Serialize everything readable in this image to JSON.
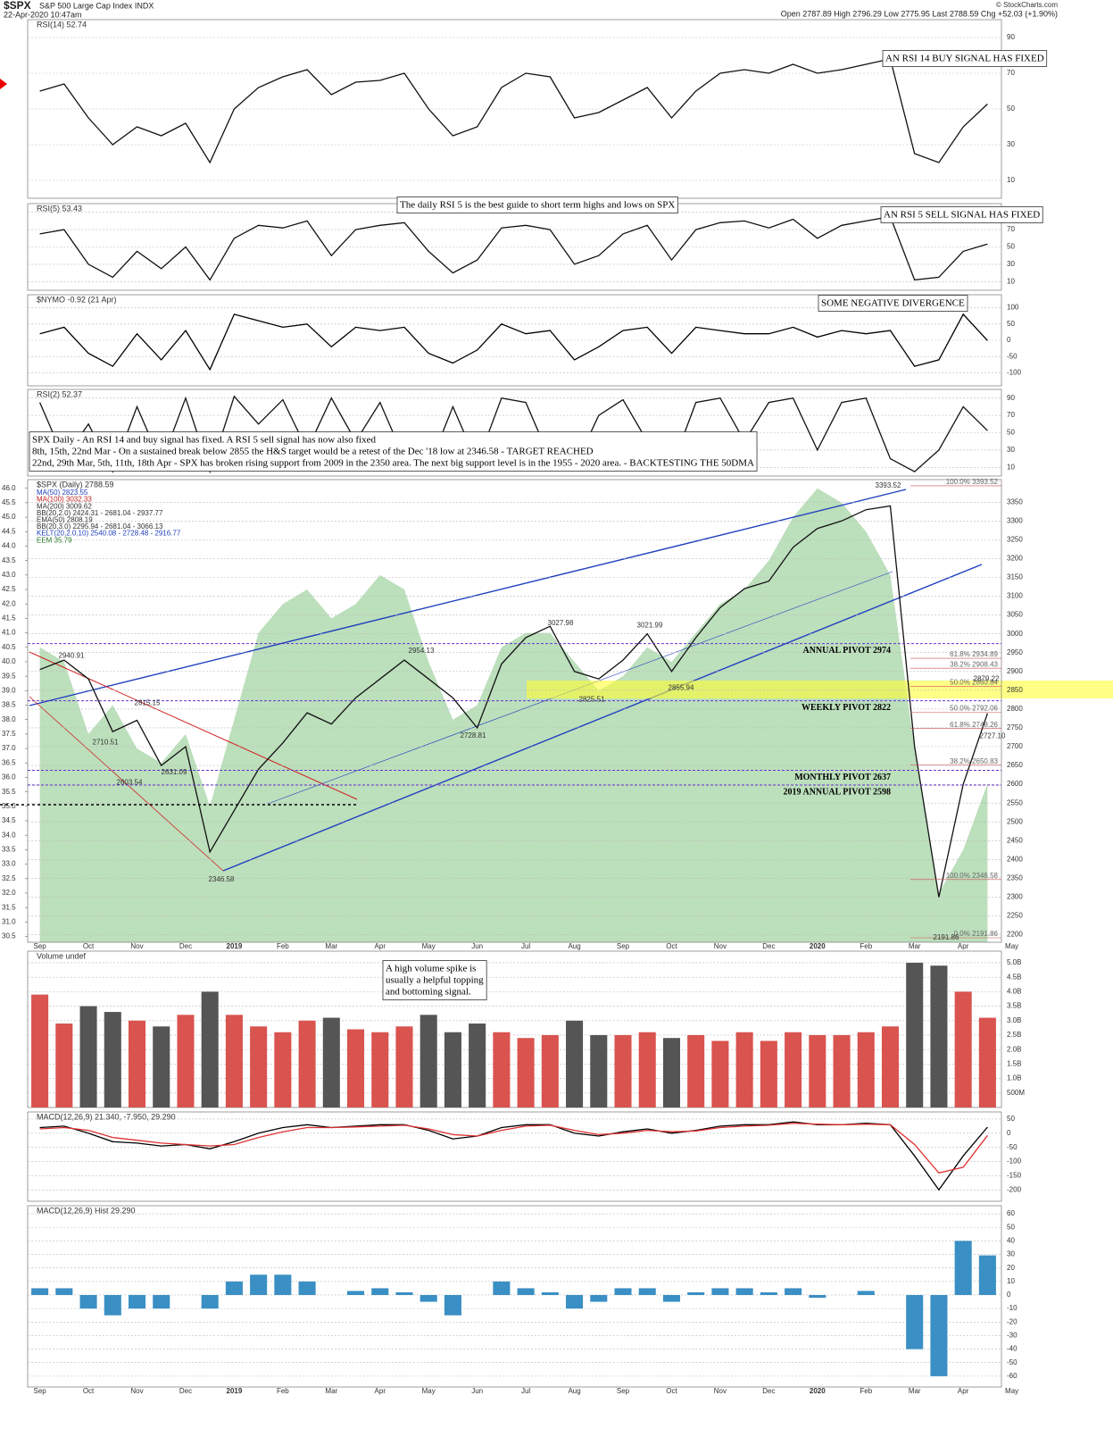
{
  "header": {
    "symbol": "$SPX",
    "name": "S&P 500 Large Cap Index INDX",
    "date": "22-Apr-2020 10:47am",
    "quote": "Open 2787.89  High 2796.29  Low 2775.95  Last 2788.59  Chg +52.03 (+1.90%)",
    "credit": "© StockCharts.com"
  },
  "chart_data": [
    {
      "type": "line",
      "title": "RSI(14) 52.74",
      "ylim": [
        0,
        100
      ],
      "yticks": [
        10,
        30,
        50,
        70,
        90
      ],
      "annotations": [
        "AN RSI 14 BUY SIGNAL HAS FIXED"
      ],
      "series": [
        {
          "name": "RSI(14)",
          "color": "#111111",
          "values": [
            60,
            64,
            45,
            30,
            40,
            35,
            42,
            20,
            50,
            62,
            68,
            72,
            58,
            65,
            66,
            70,
            50,
            35,
            40,
            62,
            70,
            68,
            45,
            48,
            55,
            62,
            45,
            60,
            70,
            72,
            70,
            75,
            70,
            72,
            75,
            78,
            25,
            20,
            40,
            52.74,
            null,
            null
          ]
        }
      ]
    },
    {
      "type": "line",
      "title": "RSI(5) 53.43",
      "ylim": [
        0,
        100
      ],
      "yticks": [
        10,
        30,
        50,
        70,
        90
      ],
      "annotations": [
        "The daily RSI 5 is the best guide to short term highs and lows on SPX",
        "AN RSI 5 SELL SIGNAL HAS FIXED"
      ],
      "series": [
        {
          "name": "RSI(5)",
          "color": "#111111",
          "values": [
            65,
            70,
            30,
            15,
            45,
            25,
            50,
            12,
            60,
            75,
            72,
            80,
            40,
            70,
            75,
            78,
            45,
            20,
            35,
            72,
            75,
            70,
            30,
            40,
            65,
            75,
            35,
            70,
            78,
            80,
            72,
            82,
            60,
            75,
            80,
            85,
            12,
            15,
            45,
            53.43,
            null,
            null
          ]
        }
      ]
    },
    {
      "type": "line",
      "title": "$NYMO -0.92 (21 Apr)",
      "ylim": [
        -140,
        140
      ],
      "yticks": [
        -100,
        -50,
        0,
        50,
        100
      ],
      "annotations": [
        "SOME NEGATIVE DIVERGENCE"
      ],
      "series": [
        {
          "name": "$NYMO",
          "color": "#000000",
          "values": [
            20,
            40,
            -40,
            -80,
            20,
            -60,
            30,
            -90,
            80,
            60,
            40,
            50,
            -20,
            40,
            30,
            40,
            -40,
            -70,
            -30,
            50,
            20,
            30,
            -60,
            -20,
            30,
            40,
            -40,
            40,
            30,
            20,
            20,
            40,
            10,
            30,
            20,
            30,
            -80,
            -60,
            80,
            -0.92,
            null,
            null
          ]
        }
      ]
    },
    {
      "type": "line",
      "title": "RSI(2) 52.37",
      "ylim": [
        0,
        100
      ],
      "yticks": [
        10,
        30,
        50,
        70,
        90
      ],
      "annotations": [
        "SPX Daily - An RSI 14 and buy signal has fixed. A RSI 5 sell signal has now also fixed",
        "8th, 15th, 22nd Mar - On a sustained break below 2855 the H&S target would be a retest of the Dec '18 low at 2346.58 - TARGET REACHED",
        "22nd, 29th Mar, 5th, 11th, 18th Apr - SPX has broken rising support from 2009 in the 2350 area. The next big support level is in the 1955 - 2020 area. - BACKTESTING THE 50DMA"
      ],
      "series": [
        {
          "name": "RSI(2)",
          "color": "#111111",
          "values": [
            85,
            20,
            60,
            5,
            80,
            15,
            90,
            5,
            92,
            60,
            88,
            30,
            90,
            40,
            85,
            20,
            10,
            80,
            15,
            90,
            85,
            20,
            10,
            70,
            88,
            40,
            10,
            85,
            90,
            40,
            85,
            90,
            30,
            85,
            90,
            20,
            5,
            30,
            80,
            52.37,
            null,
            null
          ]
        }
      ]
    },
    {
      "type": "line",
      "title": "$SPX (Daily) 2788.59",
      "categories": [
        "Sep",
        null,
        "Oct",
        null,
        "Nov",
        null,
        "Dec",
        null,
        "2019",
        null,
        "Feb",
        null,
        "Mar",
        null,
        "Apr",
        null,
        "May",
        null,
        "Jun",
        null,
        "Jul",
        null,
        "Aug",
        null,
        "Sep",
        null,
        "Oct",
        null,
        "Nov",
        null,
        "Dec",
        null,
        "2020",
        null,
        "Feb",
        null,
        "Mar",
        null,
        "Apr",
        null,
        "May",
        null
      ],
      "ylim": [
        2180,
        3410
      ],
      "yticks": [
        2200,
        2250,
        2300,
        2350,
        2400,
        2450,
        2500,
        2550,
        2600,
        2650,
        2700,
        2750,
        2800,
        2850,
        2900,
        2950,
        3000,
        3050,
        3100,
        3150,
        3200,
        3250,
        3300,
        3350
      ],
      "y2lim": [
        30.3,
        46.3
      ],
      "y2ticks": [
        30.5,
        {
          "value": 31,
          "label": "31.0"
        },
        31.5,
        {
          "value": 32,
          "label": "32.0"
        },
        32.5,
        {
          "value": 33,
          "label": "33.0"
        },
        33.5,
        {
          "value": 34,
          "label": "34.0"
        },
        34.5,
        {
          "value": 35,
          "label": "35.0"
        },
        35.5,
        {
          "value": 36,
          "label": "36.0"
        },
        36.5,
        {
          "value": 37,
          "label": "37.0"
        },
        37.5,
        {
          "value": 38,
          "label": "38.0"
        },
        38.5,
        {
          "value": 39,
          "label": "39.0"
        },
        39.5,
        {
          "value": 40,
          "label": "40.0"
        },
        40.5,
        {
          "value": 41,
          "label": "41.0"
        },
        41.5,
        {
          "value": 42,
          "label": "42.0"
        },
        42.5,
        {
          "value": 43,
          "label": "43.0"
        },
        43.5,
        {
          "value": 44,
          "label": "44.0"
        },
        44.5,
        {
          "value": 45,
          "label": "45.0"
        },
        45.5,
        {
          "value": 46,
          "label": "46.0"
        }
      ],
      "legend": [
        {
          "name": "MA(50) 2823.55",
          "color": "#1f3fbf"
        },
        {
          "name": "MA(100) 3032.33",
          "color": "#c02020"
        },
        {
          "name": "MA(200) 3009.62",
          "color": "#333333"
        },
        {
          "name": "BB(20,2.0) 2424.31 - 2681.04 - 2937.77",
          "color": "#333333"
        },
        {
          "name": "EMA(50) 2808.19",
          "color": "#333333"
        },
        {
          "name": "BB(20,3.0) 2295.94 - 2681.04 - 3066.13",
          "color": "#333333"
        },
        {
          "name": "KELT(20,2.0,10) 2540.08 - 2728.48 - 2916.77",
          "color": "#1f3fbf"
        }
      ],
      "series": [
        {
          "name": "EEM 35.79",
          "color": "#8fc98f",
          "axis": "y2",
          "values": [
            40.5,
            40,
            37.5,
            38.5,
            37,
            36.5,
            37.5,
            35,
            38,
            41,
            42,
            42.5,
            41.5,
            42,
            43,
            42.5,
            40,
            38,
            38.5,
            40.5,
            41,
            41,
            40,
            39,
            39.5,
            40.5,
            40,
            41,
            42,
            42.5,
            43.5,
            45,
            46,
            45.5,
            44.5,
            43,
            37,
            32,
            33.5,
            35.79,
            null,
            null
          ]
        },
        {
          "name": "$SPX",
          "color": "#111111",
          "values": [
            2905,
            2930,
            2880,
            2740,
            2770,
            2650,
            2700,
            2420,
            2530,
            2640,
            2710,
            2790,
            2760,
            2830,
            2880,
            2930,
            2880,
            2830,
            2750,
            2920,
            2990,
            3020,
            2900,
            2880,
            2930,
            3000,
            2900,
            2990,
            3070,
            3120,
            3140,
            3230,
            3280,
            3300,
            3330,
            3340,
            2700,
            2300,
            2600,
            2788.59,
            null,
            null
          ]
        }
      ],
      "pivots": [
        {
          "label": "ANNUAL PIVOT 2974",
          "value": 2974
        },
        {
          "label": "WEEKLY PIVOT 2822",
          "value": 2822
        },
        {
          "label": "MONTHLY PIVOT 2637",
          "value": 2637
        },
        {
          "label": "2019 ANNUAL PIVOT 2598",
          "value": 2598
        }
      ],
      "fib_labels": [
        {
          "label": "100.0% 3393.52",
          "value": 3393.52
        },
        {
          "label": "38.2% 2908.43",
          "value": 2908.43
        },
        {
          "label": "61.8% 2934.89",
          "value": 2934.89
        },
        {
          "label": "50.0% 2860.84",
          "value": 2860.84
        },
        {
          "label": "50.0% 2792.06",
          "value": 2792.06
        },
        {
          "label": "61.8% 2748.26",
          "value": 2748.26
        },
        {
          "label": "38.2% 2650.83",
          "value": 2650.83
        },
        {
          "label": "100.0% 2346.58",
          "value": 2346.58
        },
        {
          "label": "0.0% 2191.86",
          "value": 2191.86
        }
      ],
      "point_labels": [
        {
          "label": "2940.91",
          "value": 2940.91
        },
        {
          "label": "2815.15",
          "value": 2815.15
        },
        {
          "label": "2710.51",
          "value": 2710.51
        },
        {
          "label": "2603.54",
          "value": 2603.54
        },
        {
          "label": "2631.09",
          "value": 2631.09
        },
        {
          "label": "2346.58",
          "value": 2346.58
        },
        {
          "label": "2954.13",
          "value": 2954.13
        },
        {
          "label": "2728.81",
          "value": 2728.81
        },
        {
          "label": "3027.98",
          "value": 3027.98
        },
        {
          "label": "2825.51",
          "value": 2825.51
        },
        {
          "label": "3021.99",
          "value": 3021.99
        },
        {
          "label": "2855.94",
          "value": 2855.94
        },
        {
          "label": "3393.52",
          "value": 3393.52
        },
        {
          "label": "2191.86",
          "value": 2191.86
        },
        {
          "label": "2879.22",
          "value": 2879.22
        },
        {
          "label": "2727.10",
          "value": 2727.1
        }
      ]
    },
    {
      "type": "bar",
      "title": "Volume undef",
      "ylim": [
        0,
        5.4
      ],
      "yticks": [
        {
          "value": 0.5,
          "label": "500M"
        },
        {
          "value": 1,
          "label": "1.0B"
        },
        {
          "value": 1.5,
          "label": "1.5B"
        },
        {
          "value": 2,
          "label": "2.0B"
        },
        {
          "value": 2.5,
          "label": "2.5B"
        },
        {
          "value": 3,
          "label": "3.0B"
        },
        {
          "value": 3.5,
          "label": "3.5B"
        },
        {
          "value": 4,
          "label": "4.0B"
        },
        {
          "value": 4.5,
          "label": "4.5B"
        },
        {
          "value": 5,
          "label": "5.0B"
        }
      ],
      "annotations": [
        "A high volume spike is",
        "usually a helpful topping",
        "and bottoming signal."
      ],
      "up_color": "#d9534f",
      "down_color": "#555555",
      "series": [
        {
          "name": "Volume",
          "color": "#d9534f",
          "values": [
            3.9,
            2.9,
            3.5,
            3.3,
            3.0,
            2.8,
            3.2,
            4.0,
            3.2,
            2.8,
            2.6,
            3.0,
            3.1,
            2.7,
            2.6,
            2.8,
            3.2,
            2.6,
            2.9,
            2.6,
            2.4,
            2.5,
            3.0,
            2.5,
            2.5,
            2.6,
            2.4,
            2.5,
            2.3,
            2.6,
            2.3,
            2.6,
            2.5,
            2.5,
            2.6,
            2.8,
            5.0,
            4.9,
            4.0,
            3.1,
            null,
            null
          ]
        }
      ]
    },
    {
      "type": "line",
      "title": "MACD(12,26,9) 21.340, -7.950, 29.290",
      "ylim": [
        -240,
        75
      ],
      "yticks": [
        -200,
        -150,
        -100,
        -50,
        0,
        50
      ],
      "series": [
        {
          "name": "MACD",
          "color": "#000000",
          "values": [
            20,
            25,
            0,
            -30,
            -35,
            -45,
            -40,
            -55,
            -30,
            0,
            20,
            30,
            20,
            25,
            30,
            30,
            10,
            -20,
            -10,
            20,
            30,
            30,
            0,
            -10,
            5,
            15,
            0,
            10,
            25,
            30,
            30,
            40,
            30,
            30,
            35,
            30,
            -80,
            -200,
            -80,
            21.34,
            null,
            null
          ]
        },
        {
          "name": "Signal",
          "color": "#e03030",
          "values": [
            15,
            20,
            10,
            -15,
            -25,
            -35,
            -40,
            -45,
            -40,
            -15,
            5,
            20,
            20,
            22,
            25,
            28,
            15,
            -5,
            -10,
            10,
            25,
            28,
            10,
            -5,
            0,
            10,
            5,
            8,
            20,
            25,
            28,
            35,
            32,
            30,
            32,
            30,
            -40,
            -140,
            -120,
            -7.95,
            null,
            null
          ]
        }
      ]
    },
    {
      "type": "bar",
      "title": "MACD(12,26,9) Hist 29.290",
      "categories": [
        "Sep",
        null,
        "Oct",
        null,
        "Nov",
        null,
        "Dec",
        null,
        "2019",
        null,
        "Feb",
        null,
        "Mar",
        null,
        "Apr",
        null,
        "May",
        null,
        "Jun",
        null,
        "Jul",
        null,
        "Aug",
        null,
        "Sep",
        null,
        "Oct",
        null,
        "Nov",
        null,
        "Dec",
        null,
        "2020",
        null,
        "Feb",
        null,
        "Mar",
        null,
        "Apr",
        null,
        "May",
        null
      ],
      "ylim": [
        -68,
        66
      ],
      "yticks": [
        -60,
        -50,
        -40,
        -30,
        -20,
        -10,
        0,
        10,
        20,
        30,
        40,
        50,
        60
      ],
      "series": [
        {
          "name": "Hist",
          "color": "#3a8fc4",
          "values": [
            5,
            5,
            -10,
            -15,
            -10,
            -10,
            0,
            -10,
            10,
            15,
            15,
            10,
            0,
            3,
            5,
            2,
            -5,
            -15,
            0,
            10,
            5,
            2,
            -10,
            -5,
            5,
            5,
            -5,
            2,
            5,
            5,
            2,
            5,
            -2,
            0,
            3,
            0,
            -40,
            -60,
            40,
            29.29,
            null,
            null
          ]
        }
      ]
    }
  ]
}
